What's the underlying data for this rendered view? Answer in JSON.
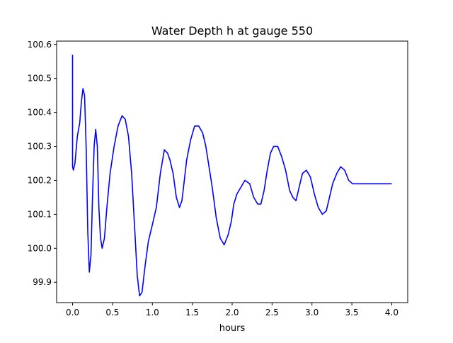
{
  "chart_data": {
    "type": "line",
    "title": "Water Depth h at gauge 550",
    "xlabel": "hours",
    "ylabel": "",
    "xlim": [
      -0.2,
      4.2
    ],
    "ylim": [
      99.84,
      100.61
    ],
    "x_ticks": [
      0.0,
      0.5,
      1.0,
      1.5,
      2.0,
      2.5,
      3.0,
      3.5,
      4.0
    ],
    "x_tick_labels": [
      "0.0",
      "0.5",
      "1.0",
      "1.5",
      "2.0",
      "2.5",
      "3.0",
      "3.5",
      "4.0"
    ],
    "y_ticks": [
      99.9,
      100.0,
      100.1,
      100.2,
      100.3,
      100.4,
      100.5,
      100.6
    ],
    "y_tick_labels": [
      "99.9",
      "100.0",
      "100.1",
      "100.2",
      "100.3",
      "100.4",
      "100.5",
      "100.6"
    ],
    "grid": false,
    "legend": "none",
    "line_color": "#0000ff",
    "series": [
      {
        "x": [
          0.0,
          0.0,
          0.01,
          0.03,
          0.06,
          0.09,
          0.11,
          0.13,
          0.15,
          0.17,
          0.19,
          0.21,
          0.23,
          0.25,
          0.27,
          0.29,
          0.31,
          0.33,
          0.35,
          0.37,
          0.4,
          0.43,
          0.47,
          0.52,
          0.57,
          0.62,
          0.66,
          0.7,
          0.74,
          0.78,
          0.81,
          0.84,
          0.87,
          0.91,
          0.95,
          1.0,
          1.05,
          1.1,
          1.15,
          1.19,
          1.22,
          1.26,
          1.3,
          1.34,
          1.37,
          1.4,
          1.43,
          1.48,
          1.53,
          1.58,
          1.63,
          1.67,
          1.71,
          1.75,
          1.8,
          1.85,
          1.9,
          1.95,
          1.99,
          2.02,
          2.06,
          2.11,
          2.16,
          2.22,
          2.27,
          2.32,
          2.36,
          2.4,
          2.44,
          2.48,
          2.52,
          2.57,
          2.62,
          2.67,
          2.72,
          2.76,
          2.8,
          2.84,
          2.88,
          2.93,
          2.98,
          3.03,
          3.08,
          3.13,
          3.18,
          3.22,
          3.26,
          3.31,
          3.36,
          3.41,
          3.46,
          3.51,
          3.56,
          3.61,
          3.66,
          3.71,
          3.76,
          3.81,
          3.85,
          3.89,
          3.93,
          3.97,
          4.0
        ],
        "y": [
          100.57,
          100.24,
          100.23,
          100.25,
          100.33,
          100.37,
          100.43,
          100.47,
          100.45,
          100.3,
          100.05,
          99.93,
          99.98,
          100.15,
          100.3,
          100.35,
          100.3,
          100.12,
          100.03,
          100.0,
          100.03,
          100.12,
          100.22,
          100.3,
          100.36,
          100.39,
          100.38,
          100.33,
          100.22,
          100.05,
          99.92,
          99.86,
          99.87,
          99.95,
          100.02,
          100.07,
          100.12,
          100.22,
          100.29,
          100.28,
          100.26,
          100.22,
          100.15,
          100.12,
          100.14,
          100.2,
          100.26,
          100.32,
          100.36,
          100.36,
          100.34,
          100.3,
          100.24,
          100.18,
          100.09,
          100.03,
          100.01,
          100.04,
          100.08,
          100.13,
          100.16,
          100.18,
          100.2,
          100.19,
          100.15,
          100.13,
          100.13,
          100.17,
          100.23,
          100.28,
          100.3,
          100.3,
          100.27,
          100.23,
          100.17,
          100.15,
          100.14,
          100.18,
          100.22,
          100.23,
          100.21,
          100.16,
          100.12,
          100.1,
          100.11,
          100.15,
          100.19,
          100.22,
          100.24,
          100.23,
          100.2,
          100.19,
          100.19,
          100.19,
          100.19,
          100.19,
          100.19,
          100.19,
          100.19,
          100.19,
          100.19,
          100.19,
          100.19
        ]
      }
    ]
  }
}
